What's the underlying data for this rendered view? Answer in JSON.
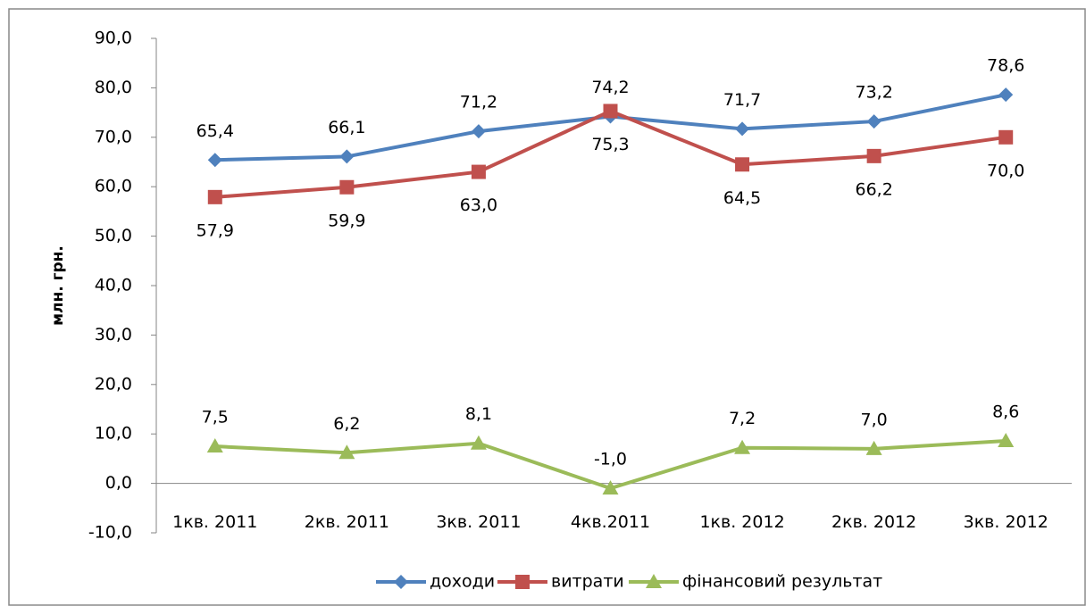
{
  "chart_data": {
    "type": "line",
    "y_label": "млн. грн.",
    "categories": [
      "1кв. 2011",
      "2кв. 2011",
      "3кв. 2011",
      "4кв.2011",
      "1кв. 2012",
      "2кв. 2012",
      "3кв. 2012"
    ],
    "series": [
      {
        "name": "доходи",
        "color": "#4f81bd",
        "marker": "diamond",
        "values": [
          65.4,
          66.1,
          71.2,
          74.2,
          71.7,
          73.2,
          78.6
        ],
        "value_labels": [
          "65,4",
          "66,1",
          "71,2",
          "74,2",
          "71,7",
          "73,2",
          "78,6"
        ]
      },
      {
        "name": "витрати",
        "color": "#c0504d",
        "marker": "square",
        "values": [
          57.9,
          59.9,
          63.0,
          75.3,
          64.5,
          66.2,
          70.0
        ],
        "value_labels": [
          "57,9",
          "59,9",
          "63,0",
          "75,3",
          "64,5",
          "66,2",
          "70,0"
        ]
      },
      {
        "name": "фінансовий результат",
        "color": "#9bbb59",
        "marker": "triangle",
        "values": [
          7.5,
          6.2,
          8.1,
          -1.0,
          7.2,
          7.0,
          8.6
        ],
        "value_labels": [
          "7,5",
          "6,2",
          "8,1",
          "-1,0",
          "7,2",
          "7,0",
          "8,6"
        ]
      }
    ],
    "ylim": [
      -10,
      90
    ],
    "yticks": [
      {
        "value": -10,
        "label": "-10,0"
      },
      {
        "value": 0,
        "label": "0,0"
      },
      {
        "value": 10,
        "label": "10,0"
      },
      {
        "value": 20,
        "label": "20,0"
      },
      {
        "value": 30,
        "label": "30,0"
      },
      {
        "value": 40,
        "label": "40,0"
      },
      {
        "value": 50,
        "label": "50,0"
      },
      {
        "value": 60,
        "label": "60,0"
      },
      {
        "value": 70,
        "label": "70,0"
      },
      {
        "value": 80,
        "label": "80,0"
      },
      {
        "value": 90,
        "label": "90,0"
      }
    ],
    "legend": "bottom",
    "grid": false
  }
}
